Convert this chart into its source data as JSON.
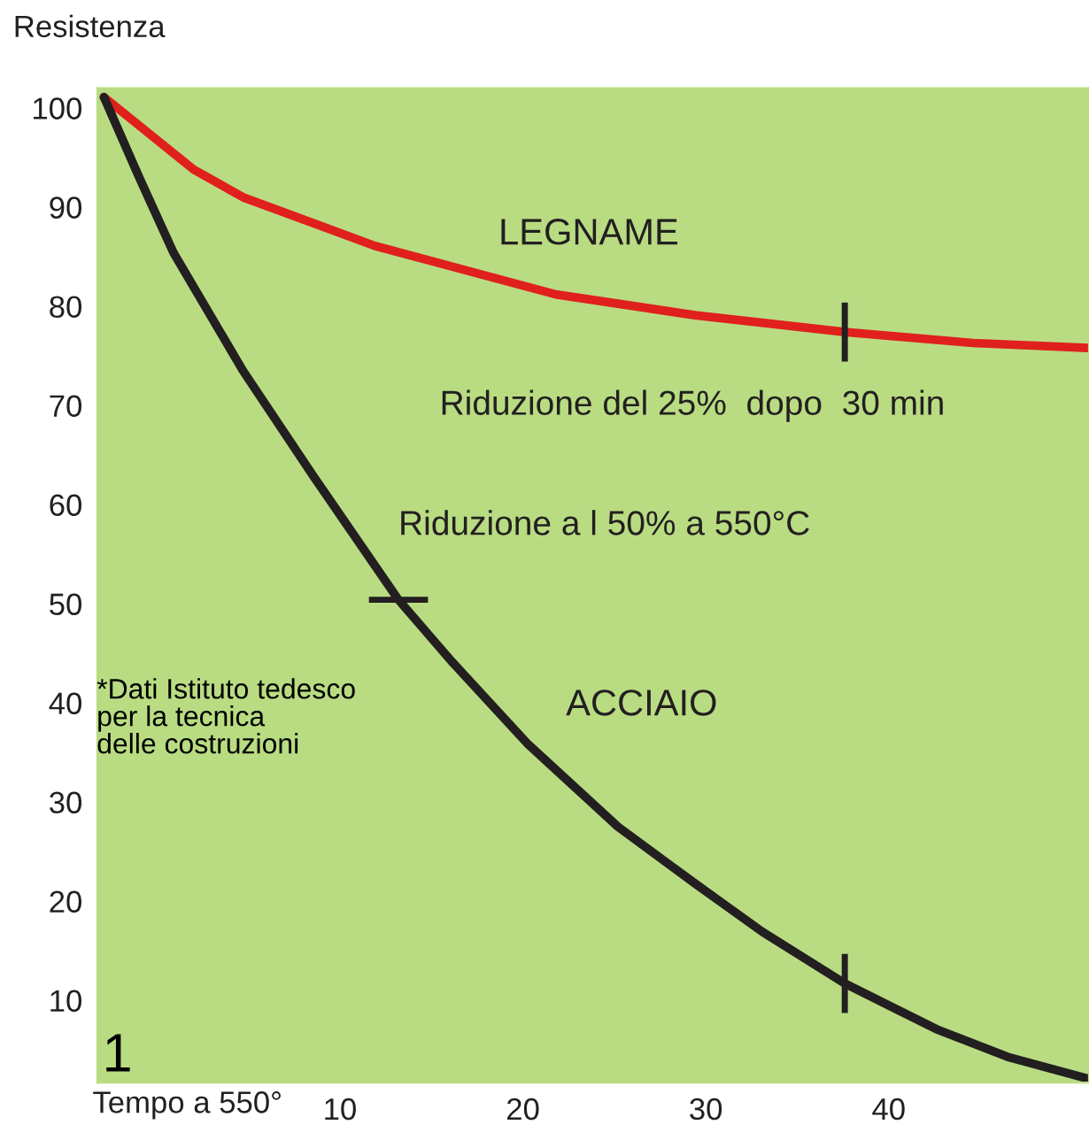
{
  "chart_data": {
    "type": "line",
    "ylabel": "Resistenza",
    "xlabel": "Tempo a 550°",
    "xlim": [
      -3.26,
      50.95
    ],
    "ylim": [
      1.7,
      102
    ],
    "xticks": [
      10,
      20,
      30,
      40
    ],
    "yticks": [
      10,
      20,
      30,
      40,
      50,
      60,
      70,
      80,
      90,
      100
    ],
    "grid": false,
    "legend": false,
    "series": [
      {
        "name": "LEGNAME",
        "color": "#e0201c",
        "x": [
          -2.9,
          2.0,
          4.7,
          11.9,
          21.8,
          29.4,
          37.6,
          44.6,
          50.9
        ],
        "values": [
          101.1,
          93.8,
          91.0,
          86.1,
          81.2,
          79.1,
          77.4,
          76.3,
          75.8
        ]
      },
      {
        "name": "ACCIAIO",
        "color": "#231f20",
        "x": [
          -2.9,
          -1.0,
          0.9,
          4.7,
          8.5,
          13.2,
          16.1,
          20.3,
          25.2,
          29.4,
          33.1,
          37.6,
          42.6,
          46.5,
          50.9
        ],
        "values": [
          101.1,
          93.1,
          85.4,
          73.5,
          63.0,
          50.4,
          44.2,
          35.8,
          27.5,
          21.8,
          16.9,
          11.7,
          7.1,
          4.3,
          2.1
        ]
      }
    ],
    "annotations": [
      {
        "text": "Riduzione del 25%  dopo  30 min",
        "x": 37.6,
        "y": 77.4
      },
      {
        "text": "Riduzione a l 50% a 550°C",
        "x": 13.2,
        "y": 50.4
      },
      "*Dati Istituto tedesco\nper la tecnica\ndelle costruzioni",
      "1"
    ]
  }
}
